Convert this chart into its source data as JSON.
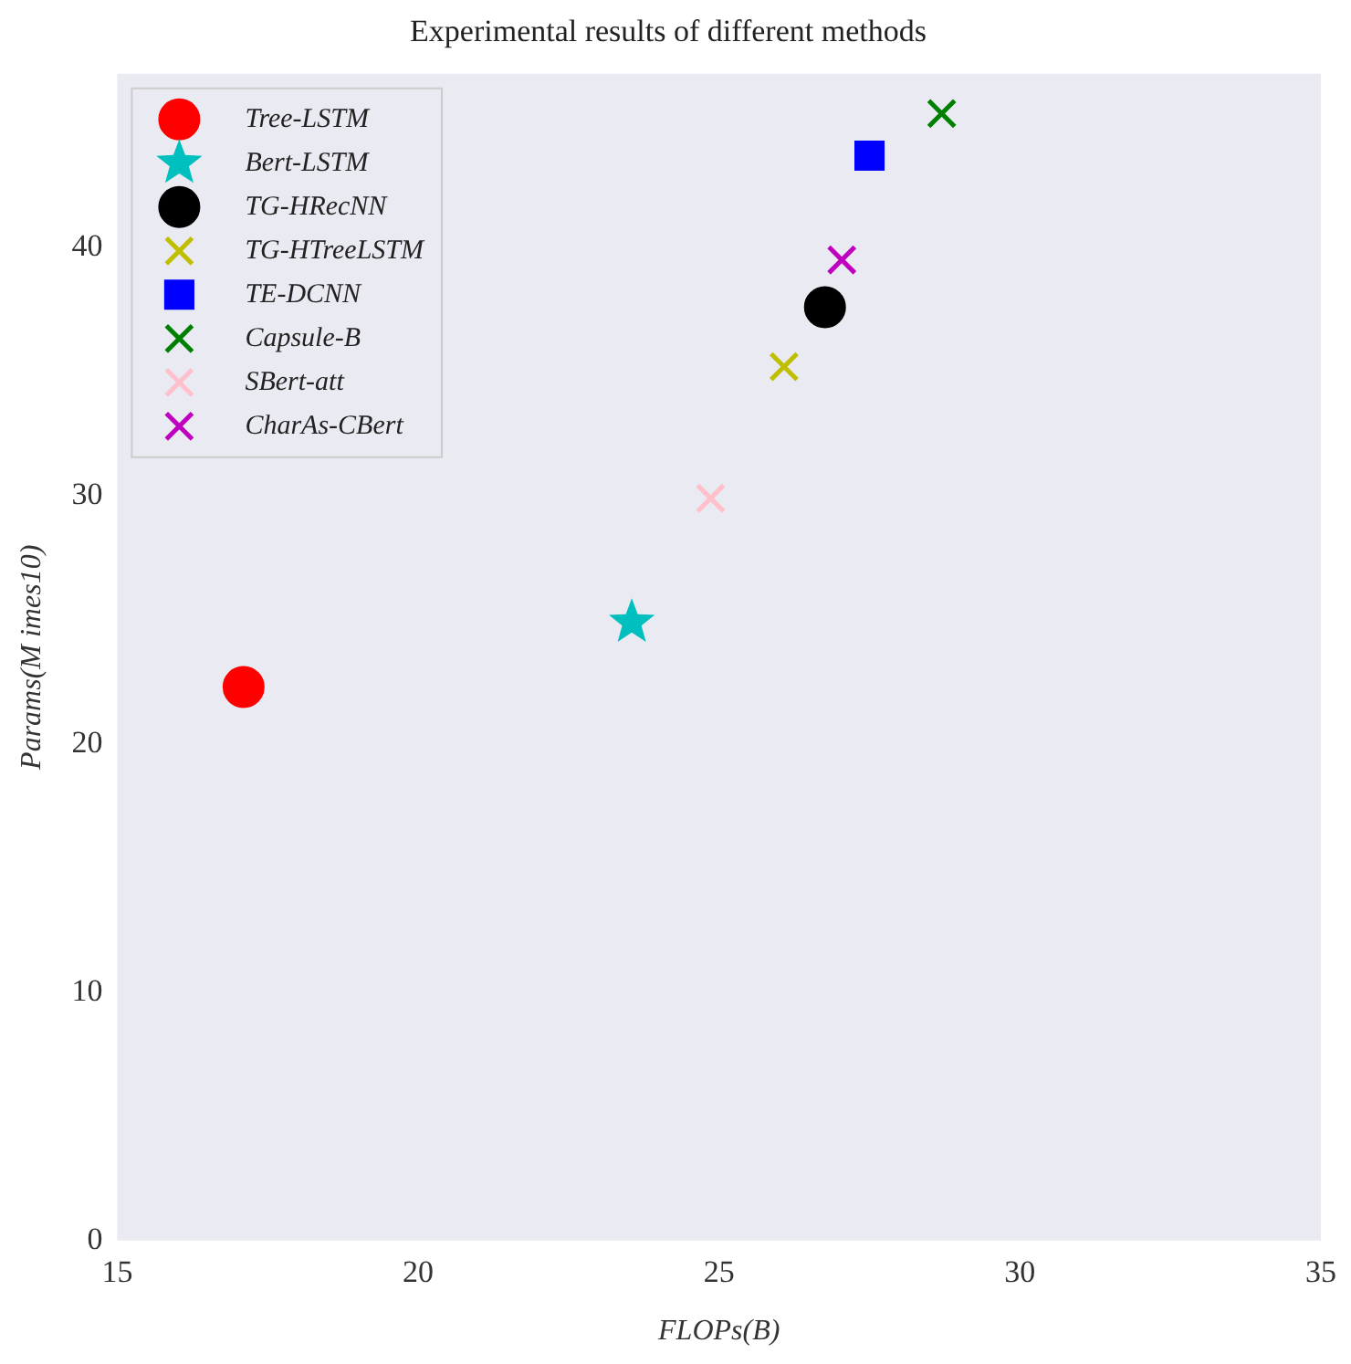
{
  "chart_data": {
    "type": "scatter",
    "title": "Experimental results of different methods",
    "xlabel": "FLOPs(B)",
    "ylabel": "Params(M imes10)",
    "xlim": [
      15,
      35
    ],
    "xticks": [
      15,
      20,
      25,
      30,
      35
    ],
    "ylim": [
      0,
      47
    ],
    "yticks": [
      0,
      10,
      20,
      30,
      40
    ],
    "grid": false,
    "legend": "top left",
    "series": [
      {
        "name": "Tree-LSTM",
        "color": "#ff0000",
        "marker": "circle",
        "x": [
          17.1
        ],
        "values": [
          22.3
        ]
      },
      {
        "name": "Bert-LSTM",
        "color": "#00bfbf",
        "marker": "star",
        "x": [
          23.55
        ],
        "values": [
          24.9
        ]
      },
      {
        "name": "TG-HRecNN",
        "color": "#000000",
        "marker": "circle",
        "x": [
          26.76
        ],
        "values": [
          37.6
        ]
      },
      {
        "name": "TG-HTreeLSTM",
        "color": "#bfbf00",
        "marker": "cross",
        "x": [
          26.08
        ],
        "values": [
          35.2
        ]
      },
      {
        "name": "TE-DCNN",
        "color": "#0000ff",
        "marker": "square",
        "x": [
          27.5
        ],
        "values": [
          43.7
        ]
      },
      {
        "name": "Capsule-B",
        "color": "#008000",
        "marker": "cross",
        "x": [
          28.7
        ],
        "values": [
          45.4
        ]
      },
      {
        "name": "SBert-att",
        "color": "#ffc0cb",
        "marker": "cross",
        "x": [
          24.86
        ],
        "values": [
          29.9
        ]
      },
      {
        "name": "CharAs-CBert",
        "color": "#bf00bf",
        "marker": "cross",
        "x": [
          27.04
        ],
        "values": [
          39.5
        ]
      }
    ]
  }
}
